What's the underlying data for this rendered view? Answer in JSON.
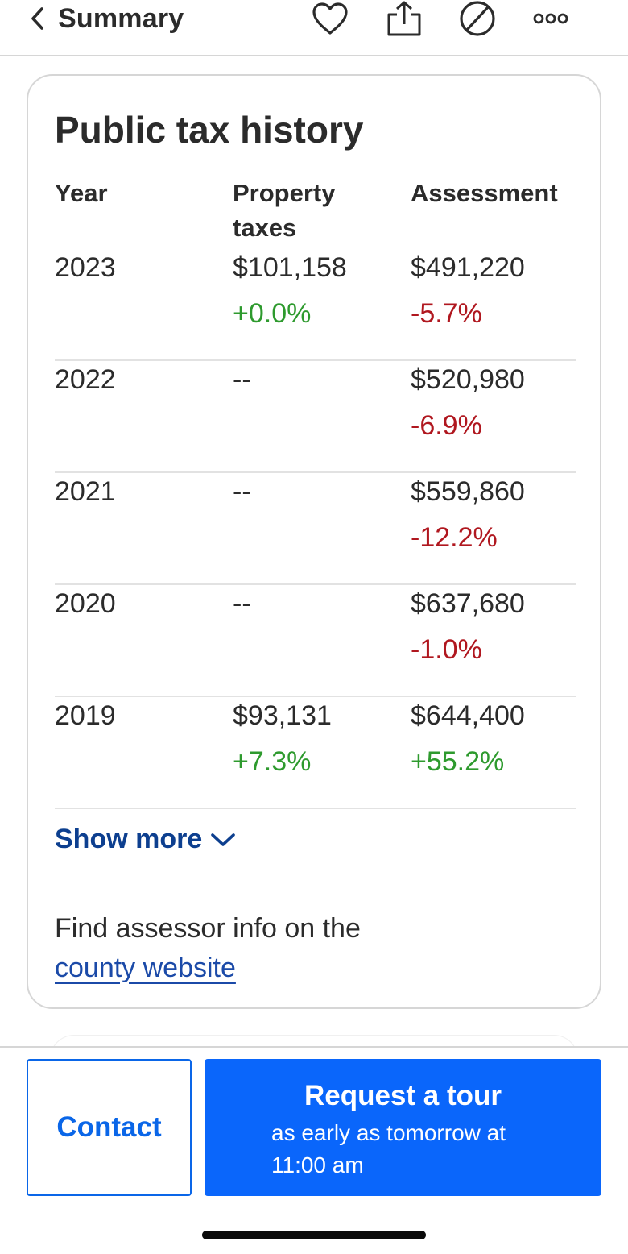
{
  "nav": {
    "back_label": "Summary",
    "icons": [
      "chevron-left-icon",
      "heart-icon",
      "share-icon",
      "block-icon",
      "more-icon"
    ]
  },
  "tax_history": {
    "title": "Public tax history",
    "headers": {
      "year": "Year",
      "taxes_line1": "Property",
      "taxes_line2": "taxes",
      "assessment": "Assessment"
    },
    "rows": [
      {
        "year": "2023",
        "taxes": "$101,158",
        "taxes_change": "+0.0%",
        "assessment": "$491,220",
        "assessment_change": "-5.7%"
      },
      {
        "year": "2022",
        "taxes": "--",
        "taxes_change": "",
        "assessment": "$520,980",
        "assessment_change": "-6.9%"
      },
      {
        "year": "2021",
        "taxes": "--",
        "taxes_change": "",
        "assessment": "$559,860",
        "assessment_change": "-12.2%"
      },
      {
        "year": "2020",
        "taxes": "--",
        "taxes_change": "",
        "assessment": "$637,680",
        "assessment_change": "-1.0%"
      },
      {
        "year": "2019",
        "taxes": "$93,131",
        "taxes_change": "+7.3%",
        "assessment": "$644,400",
        "assessment_change": "+55.2%"
      }
    ],
    "show_more_label": "Show more",
    "assessor_text": "Find assessor info on the",
    "assessor_link": "county website"
  },
  "actions": {
    "contact_label": "Contact",
    "tour_title": "Request a tour",
    "tour_subtitle": "as early as tomorrow at 11:00 am"
  },
  "colors": {
    "positive": "#2e9a2e",
    "negative": "#b0171f",
    "link": "#1b4aa8",
    "primary_button": "#0a66fb",
    "show_more": "#0d3f8f"
  }
}
